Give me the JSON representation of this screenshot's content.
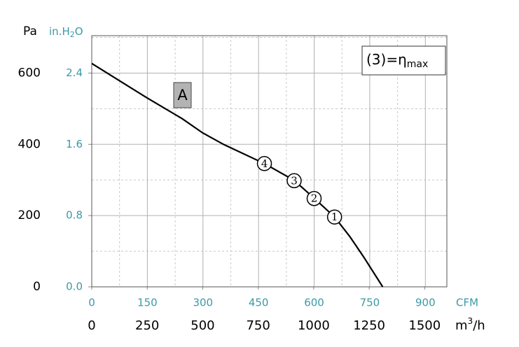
{
  "chart_data": {
    "type": "line",
    "y_label": "Pa",
    "y2_label": {
      "main": "in.H",
      "sub": "2",
      "end": "O"
    },
    "x_label": {
      "main": "m",
      "sup": "3",
      "end": "/h"
    },
    "x2_label": "CFM",
    "annotation": {
      "main": "(3)=η",
      "sub": "max"
    },
    "x": [
      0,
      250,
      407,
      500,
      596,
      778,
      911,
      1000,
      1094,
      1163,
      1226,
      1311
    ],
    "series": [
      {
        "name": "A",
        "color": "#000000",
        "values": [
          627,
          530,
          472,
          432,
          399,
          346,
          299,
          250,
          196,
          141,
          83,
          0
        ]
      }
    ],
    "points": [
      {
        "label": "4",
        "x": 778,
        "y": 346
      },
      {
        "label": "3",
        "x": 912,
        "y": 298
      },
      {
        "label": "2",
        "x": 1002,
        "y": 248
      },
      {
        "label": "1",
        "x": 1094,
        "y": 196
      }
    ],
    "xlim": [
      0,
      1600
    ],
    "xticks": [
      0,
      250,
      500,
      750,
      1000,
      1250,
      1500
    ],
    "x2lim": [
      0,
      958
    ],
    "x2ticks": [
      0,
      150,
      300,
      450,
      600,
      750,
      900
    ],
    "ylim": [
      0,
      705
    ],
    "yticks": [
      0,
      200,
      400,
      600
    ],
    "y2lim": [
      0,
      2.82
    ],
    "y2ticks": [
      {
        "value": 0,
        "label": "0.0"
      },
      0.8,
      1.6,
      2.4
    ],
    "grid": true,
    "minor_grid": true,
    "secondary_color": "#3a9aa6"
  }
}
